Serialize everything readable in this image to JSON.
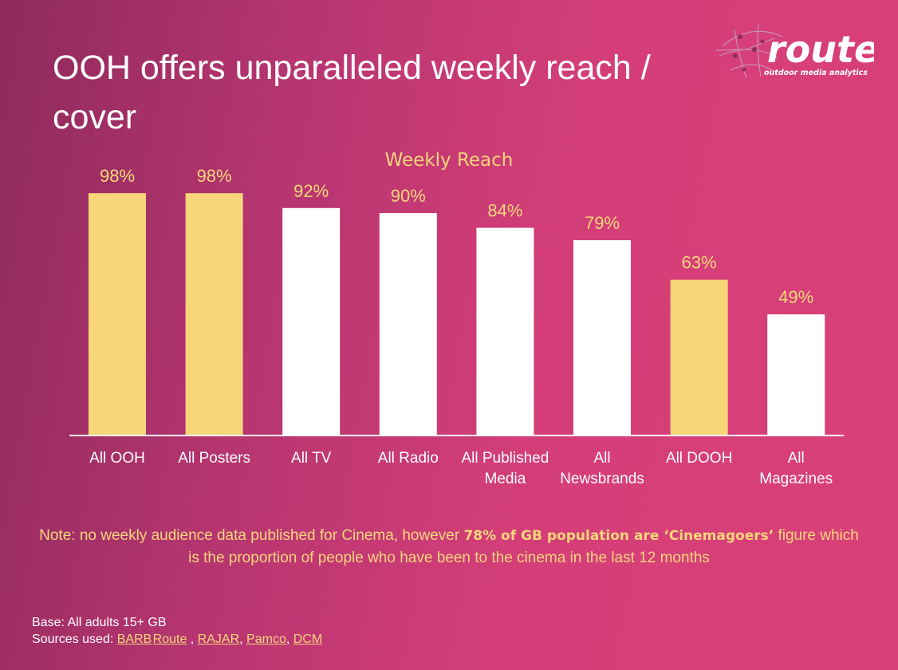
{
  "title": "OOH offers unparalleled weekly reach / cover",
  "logo": {
    "name": "route",
    "tagline": "outdoor media analytics"
  },
  "colors": {
    "highlight": "#f7d67a",
    "bar_white": "#ffffff"
  },
  "chart_data": {
    "type": "bar",
    "title": "Weekly Reach",
    "categories": [
      [
        "All OOH"
      ],
      [
        "All Posters"
      ],
      [
        "All TV"
      ],
      [
        "All Radio"
      ],
      [
        "All Published",
        "Media"
      ],
      [
        "All",
        "Newsbrands"
      ],
      [
        "All DOOH"
      ],
      [
        "All",
        "Magazines"
      ]
    ],
    "values": [
      98,
      98,
      92,
      90,
      84,
      79,
      63,
      49
    ],
    "value_labels": [
      "98%",
      "98%",
      "92%",
      "90%",
      "84%",
      "79%",
      "63%",
      "49%"
    ],
    "highlighted": [
      true,
      true,
      false,
      false,
      false,
      false,
      true,
      false
    ],
    "ylim": [
      0,
      100
    ],
    "unit": "%"
  },
  "note": {
    "prefix": "Note: no weekly audience data published for Cinema, however ",
    "bold": "78% of GB population are ‘Cinemagoers’",
    "suffix": " figure which is the proportion of people who have been to the cinema in the last 12 months"
  },
  "base_text": "Base: All adults 15+ GB",
  "sources": {
    "label": "Sources used: ",
    "items": [
      "BARB",
      "Route",
      "RAJAR",
      "Pamco",
      "DCM"
    ]
  }
}
